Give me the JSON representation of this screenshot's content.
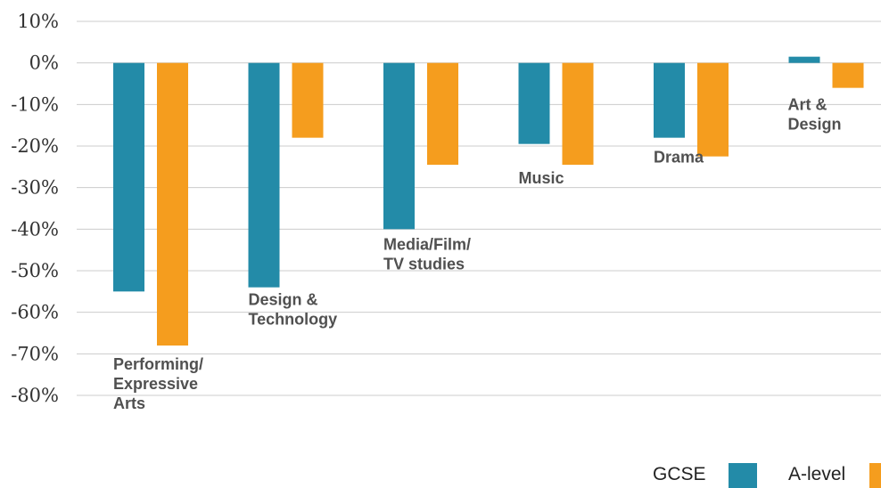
{
  "chart_data": {
    "type": "bar",
    "categories": [
      [
        "Performing/",
        "Expressive",
        "Arts"
      ],
      [
        "Design &",
        "Technology"
      ],
      [
        "Media/Film/",
        "TV studies"
      ],
      [
        "Music"
      ],
      [
        "Drama"
      ],
      [
        "Art &",
        "Design"
      ]
    ],
    "series": [
      {
        "name": "GCSE",
        "color": "#238ba8",
        "values": [
          -55,
          -54,
          -40,
          -19.5,
          -18,
          1.5
        ]
      },
      {
        "name": "A-level",
        "color": "#f59d1e",
        "values": [
          -68,
          -18,
          -24.5,
          -24.5,
          -22.5,
          -6
        ]
      }
    ],
    "yticks": [
      "10%",
      "0%",
      "-10%",
      "-20%",
      "-30%",
      "-40%",
      "-50%",
      "-60%",
      "-70%",
      "-80%"
    ],
    "ylim": [
      -80,
      10
    ],
    "grid": true,
    "legend_position": "bottom-right"
  }
}
